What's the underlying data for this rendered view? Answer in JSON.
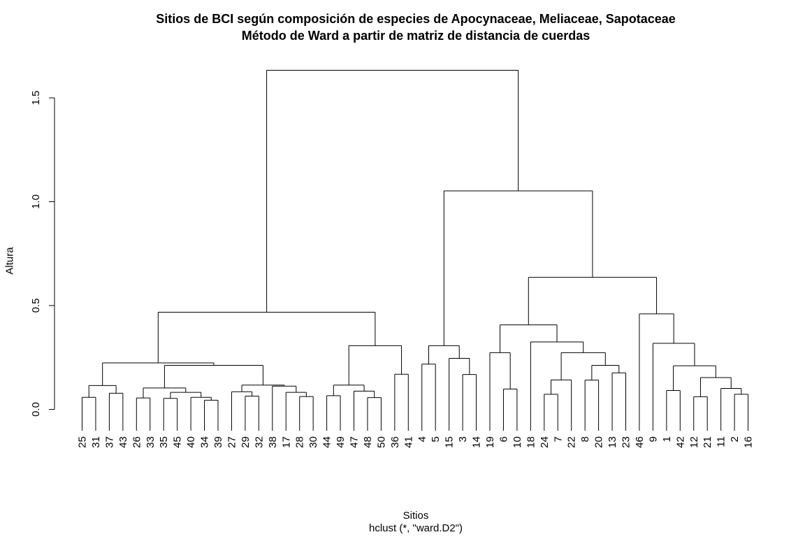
{
  "chart_data": {
    "type": "dendrogram",
    "title": "Sitios de BCI según composición de especies de Apocynaceae, Meliaceae, Sapotaceae",
    "subtitle": "Método de Ward a partir de matriz de distancia de cuerdas",
    "xlabel": "Sitios",
    "sublabel": "hclust (*, \"ward.D2\")",
    "ylabel": "Altura",
    "ylim": [
      0,
      1.7
    ],
    "yticks": [
      "0.0",
      "0.5",
      "1.0",
      "1.5"
    ],
    "leaf_order": [
      "25",
      "31",
      "37",
      "43",
      "26",
      "33",
      "35",
      "45",
      "40",
      "34",
      "39",
      "27",
      "29",
      "32",
      "38",
      "17",
      "28",
      "30",
      "44",
      "49",
      "47",
      "48",
      "50",
      "36",
      "41",
      "4",
      "5",
      "15",
      "3",
      "14",
      "19",
      "6",
      "10",
      "18",
      "24",
      "7",
      "22",
      "8",
      "20",
      "13",
      "23",
      "46",
      "9",
      "1",
      "42",
      "12",
      "21",
      "11",
      "2",
      "16"
    ],
    "merges": [
      {
        "left": "25",
        "right": "31",
        "height": 0.058
      },
      {
        "left": "37",
        "right": "43",
        "height": 0.078
      },
      {
        "left": "26",
        "right": "33",
        "height": 0.055
      },
      {
        "left": "35",
        "right": "45",
        "height": 0.053
      },
      {
        "left": "34",
        "right": "39",
        "height": 0.044
      },
      {
        "left": "40",
        "right": "34-39",
        "height": 0.058
      },
      {
        "left": "35-45",
        "right": "40-34-39",
        "height": 0.082
      },
      {
        "left": "26-33",
        "right": "35-45-40-34-39",
        "height": 0.103
      },
      {
        "left": "29",
        "right": "32",
        "height": 0.064
      },
      {
        "left": "27",
        "right": "29-32",
        "height": 0.085
      },
      {
        "left": "28",
        "right": "30",
        "height": 0.062
      },
      {
        "left": "17",
        "right": "28-30",
        "height": 0.082
      },
      {
        "left": "38",
        "right": "17-28-30",
        "height": 0.112
      },
      {
        "left": "27-29-32",
        "right": "38-17-28-30",
        "height": 0.117
      },
      {
        "left": "26..39",
        "right": "27..30",
        "height": 0.212
      },
      {
        "left": "25-31",
        "right": "37-43",
        "height": 0.115
      },
      {
        "left": "25-31-37-43",
        "right": "26..30",
        "height": 0.224
      },
      {
        "left": "48",
        "right": "50",
        "height": 0.057
      },
      {
        "left": "47",
        "right": "48-50",
        "height": 0.088
      },
      {
        "left": "44",
        "right": "49",
        "height": 0.066
      },
      {
        "left": "44-49",
        "right": "47-48-50",
        "height": 0.117
      },
      {
        "left": "36",
        "right": "41",
        "height": 0.169
      },
      {
        "left": "44..50",
        "right": "36-41",
        "height": 0.307
      },
      {
        "left": "25..30",
        "right": "44..41",
        "height": 0.468
      },
      {
        "left": "4",
        "right": "5",
        "height": 0.218
      },
      {
        "left": "3",
        "right": "14",
        "height": 0.168
      },
      {
        "left": "15",
        "right": "3-14",
        "height": 0.246
      },
      {
        "left": "4-5",
        "right": "15-3-14",
        "height": 0.307
      },
      {
        "left": "6",
        "right": "10",
        "height": 0.098
      },
      {
        "left": "19",
        "right": "6-10",
        "height": 0.273
      },
      {
        "left": "24",
        "right": "7",
        "height": 0.073
      },
      {
        "left": "7",
        "right": "22",
        "height": 0.142
      },
      {
        "left": "24",
        "right": "7-22",
        "height": 0.202
      },
      {
        "left": "8",
        "right": "20",
        "height": 0.141
      },
      {
        "left": "13",
        "right": "23",
        "height": 0.176
      },
      {
        "left": "8-20",
        "right": "13-23",
        "height": 0.212
      },
      {
        "left": "24-7-22",
        "right": "8-20-13-23",
        "height": 0.273
      },
      {
        "left": "18",
        "right": "24..23",
        "height": 0.325
      },
      {
        "left": "19-6-10",
        "right": "18..23",
        "height": 0.407
      },
      {
        "left": "1",
        "right": "42",
        "height": 0.091
      },
      {
        "left": "12",
        "right": "21",
        "height": 0.061
      },
      {
        "left": "2",
        "right": "16",
        "height": 0.073
      },
      {
        "left": "11",
        "right": "2-16",
        "height": 0.101
      },
      {
        "left": "12-21",
        "right": "11-2-16",
        "height": 0.153
      },
      {
        "left": "1-42",
        "right": "12..16",
        "height": 0.21
      },
      {
        "left": "9",
        "right": "1..16",
        "height": 0.318
      },
      {
        "left": "46",
        "right": "9..16",
        "height": 0.46
      },
      {
        "left": "19..23",
        "right": "46..16",
        "height": 0.636
      },
      {
        "left": "4..14",
        "right": "19..16",
        "height": 1.052
      },
      {
        "left": "25..41",
        "right": "4..16",
        "height": 1.633
      }
    ]
  }
}
